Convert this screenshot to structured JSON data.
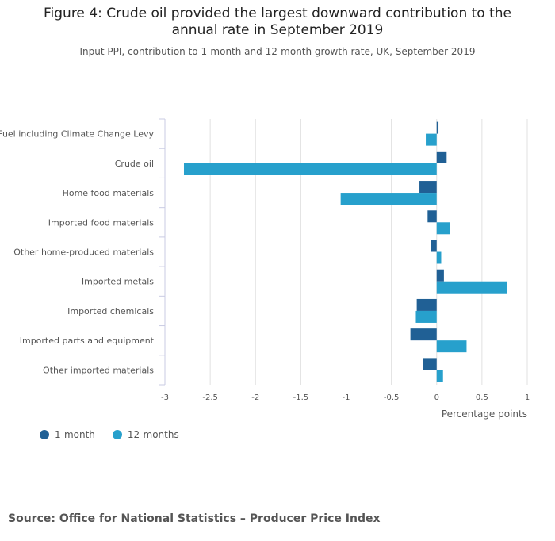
{
  "title_line1": "Figure 4: Crude oil provided the largest downward contribution to the",
  "title_line2": "annual rate in September 2019",
  "subtitle": "Input PPI, contribution to 1-month and 12-month growth rate, UK, September 2019",
  "source": "Source: Office for National Statistics – Producer Price Index",
  "colors": {
    "month": "#206095",
    "annual": "#27a0cc",
    "grid": "#e0e0e0",
    "axis": "#c9cbe3"
  },
  "chart_data": {
    "type": "bar",
    "orientation": "horizontal",
    "title": "Figure 4: Crude oil provided the largest downward contribution to the annual rate in September 2019",
    "xlabel": "Percentage points",
    "xlim": [
      -3,
      1
    ],
    "xticks": [
      "-3",
      "-2.5",
      "-2",
      "-1.5",
      "-1",
      "-0.5",
      "0",
      "0.5",
      "1"
    ],
    "xtick_values": [
      -3,
      -2.5,
      -2,
      -1.5,
      -1,
      -0.5,
      0,
      0.5,
      1
    ],
    "legend_position": "bottom-left",
    "categories": [
      "Fuel including Climate Change Levy",
      "Crude oil",
      "Home food materials",
      "Imported food materials",
      "Other home-produced materials",
      "Imported metals",
      "Imported chemicals",
      "Imported parts and equipment",
      "Other imported materials"
    ],
    "series": [
      {
        "name": "1-month",
        "values": [
          0.02,
          0.11,
          -0.19,
          -0.1,
          -0.06,
          0.08,
          -0.22,
          -0.29,
          -0.15
        ]
      },
      {
        "name": "12-months",
        "values": [
          -0.12,
          -2.79,
          -1.06,
          0.15,
          0.05,
          0.78,
          -0.23,
          0.33,
          0.07
        ]
      }
    ]
  }
}
